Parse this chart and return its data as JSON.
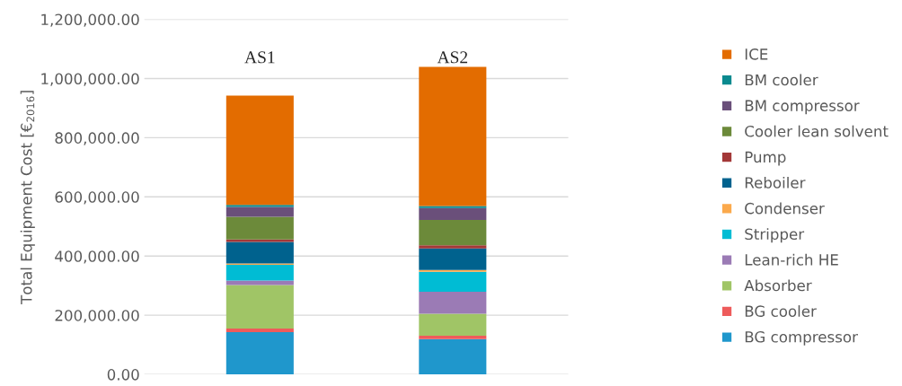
{
  "chart_data": {
    "type": "bar",
    "stacked": true,
    "ylabel": "Total Equipment Cost [€$_{2016}$]",
    "categories": [
      "AS1",
      "AS2"
    ],
    "series": [
      {
        "name": "BG compressor",
        "color": "#1f97cc",
        "values": [
          143000,
          119000
        ]
      },
      {
        "name": "BG cooler",
        "color": "#ee5b5b",
        "values": [
          12000,
          12000
        ]
      },
      {
        "name": "Absorber",
        "color": "#a0c566",
        "values": [
          147000,
          74000
        ]
      },
      {
        "name": "Lean-rich HE",
        "color": "#9b7bb5",
        "values": [
          15000,
          74000
        ]
      },
      {
        "name": "Stripper",
        "color": "#00bcd4",
        "values": [
          53000,
          68000
        ]
      },
      {
        "name": "Condenser",
        "color": "#fba94c",
        "values": [
          5000,
          6000
        ]
      },
      {
        "name": "Reboiler",
        "color": "#00628e",
        "values": [
          73000,
          73000
        ]
      },
      {
        "name": "Pump",
        "color": "#a33838",
        "values": [
          8000,
          10000
        ]
      },
      {
        "name": "Cooler lean solvent",
        "color": "#6c8a3a",
        "values": [
          77000,
          86000
        ]
      },
      {
        "name": "BM compressor",
        "color": "#6a4f7a",
        "values": [
          33000,
          40000
        ]
      },
      {
        "name": "BM cooler",
        "color": "#0a8a8f",
        "values": [
          7000,
          7000
        ]
      },
      {
        "name": "ICE",
        "color": "#e36c00",
        "values": [
          369000,
          470000
        ]
      }
    ],
    "ylim": [
      0,
      1200000
    ],
    "yticks": [
      {
        "value": 0,
        "label": "0.00"
      },
      {
        "value": 200000,
        "label": "200,000.00"
      },
      {
        "value": 400000,
        "label": "400,000.00"
      },
      {
        "value": 600000,
        "label": "600,000.00"
      },
      {
        "value": 800000,
        "label": "800,000.00"
      },
      {
        "value": 1000000,
        "label": "1,000,000.00"
      },
      {
        "value": 1200000,
        "label": "1,200,000.00"
      }
    ],
    "grid": "y",
    "legend": "right"
  }
}
